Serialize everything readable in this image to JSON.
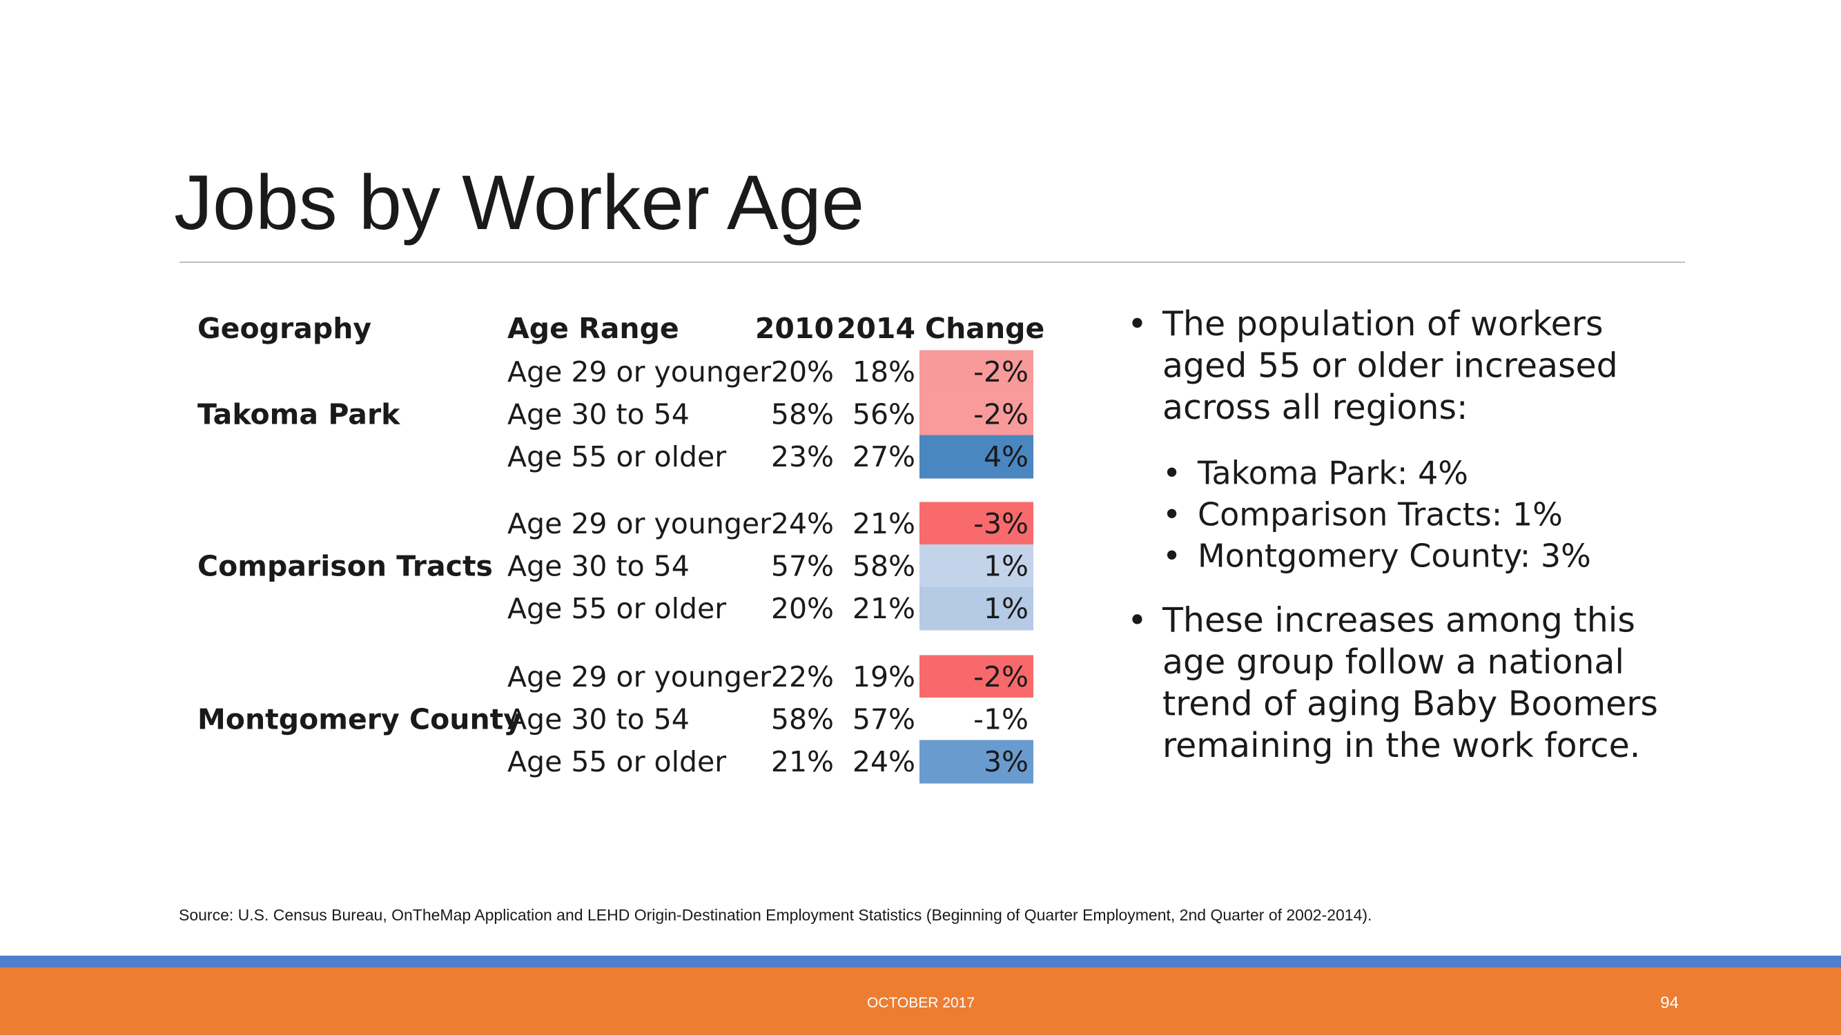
{
  "title": "Jobs by Worker Age",
  "table": {
    "headers": [
      "Geography",
      "Age Range",
      "2010",
      "2014",
      "Change"
    ],
    "groups": [
      {
        "geography": "Takoma Park",
        "rows": [
          {
            "age": "Age 29 or younger",
            "y2010": "20%",
            "y2014": "18%",
            "change": "-2%",
            "color": "#f8999a"
          },
          {
            "age": "Age 30 to 54",
            "y2010": "58%",
            "y2014": "56%",
            "change": "-2%",
            "color": "#f99a9b"
          },
          {
            "age": "Age 55 or older",
            "y2010": "23%",
            "y2014": "27%",
            "change": "4%",
            "color": "#4a86c0"
          }
        ]
      },
      {
        "geography": "Comparison Tracts",
        "rows": [
          {
            "age": "Age 29 or younger",
            "y2010": "24%",
            "y2014": "21%",
            "change": "-3%",
            "color": "#f86a6c"
          },
          {
            "age": "Age 30 to 54",
            "y2010": "57%",
            "y2014": "58%",
            "change": "1%",
            "color": "#c3d3ea"
          },
          {
            "age": "Age 55 or older",
            "y2010": "20%",
            "y2014": "21%",
            "change": "1%",
            "color": "#b4cae5"
          }
        ]
      },
      {
        "geography": "Montgomery County",
        "rows": [
          {
            "age": "Age 29 or younger",
            "y2010": "22%",
            "y2014": "19%",
            "change": "-2%",
            "color": "#f8696b"
          },
          {
            "age": "Age 30 to 54",
            "y2010": "58%",
            "y2014": "57%",
            "change": "-1%",
            "color": "#ffffff"
          },
          {
            "age": "Age 55 or older",
            "y2010": "21%",
            "y2014": "24%",
            "change": "3%",
            "color": "#6a9bcf"
          }
        ]
      }
    ]
  },
  "bullets": [
    {
      "lines": [
        "The population of workers",
        "aged 55 or older increased",
        "across all regions:"
      ],
      "subbullets": [
        "Takoma Park: 4%",
        "Comparison Tracts: 1%",
        "Montgomery County: 3%"
      ]
    },
    {
      "lines": [
        "These increases among this",
        "age group follow a national",
        "trend of aging Baby Boomers",
        "remaining in the work force."
      ]
    }
  ],
  "source": "Source: U.S. Census Bureau, OnTheMap Application and LEHD Origin-Destination Employment Statistics (Beginning of Quarter Employment, 2nd Quarter of 2002-2014).",
  "footer": {
    "date": "OCTOBER 2017",
    "page": "94"
  }
}
